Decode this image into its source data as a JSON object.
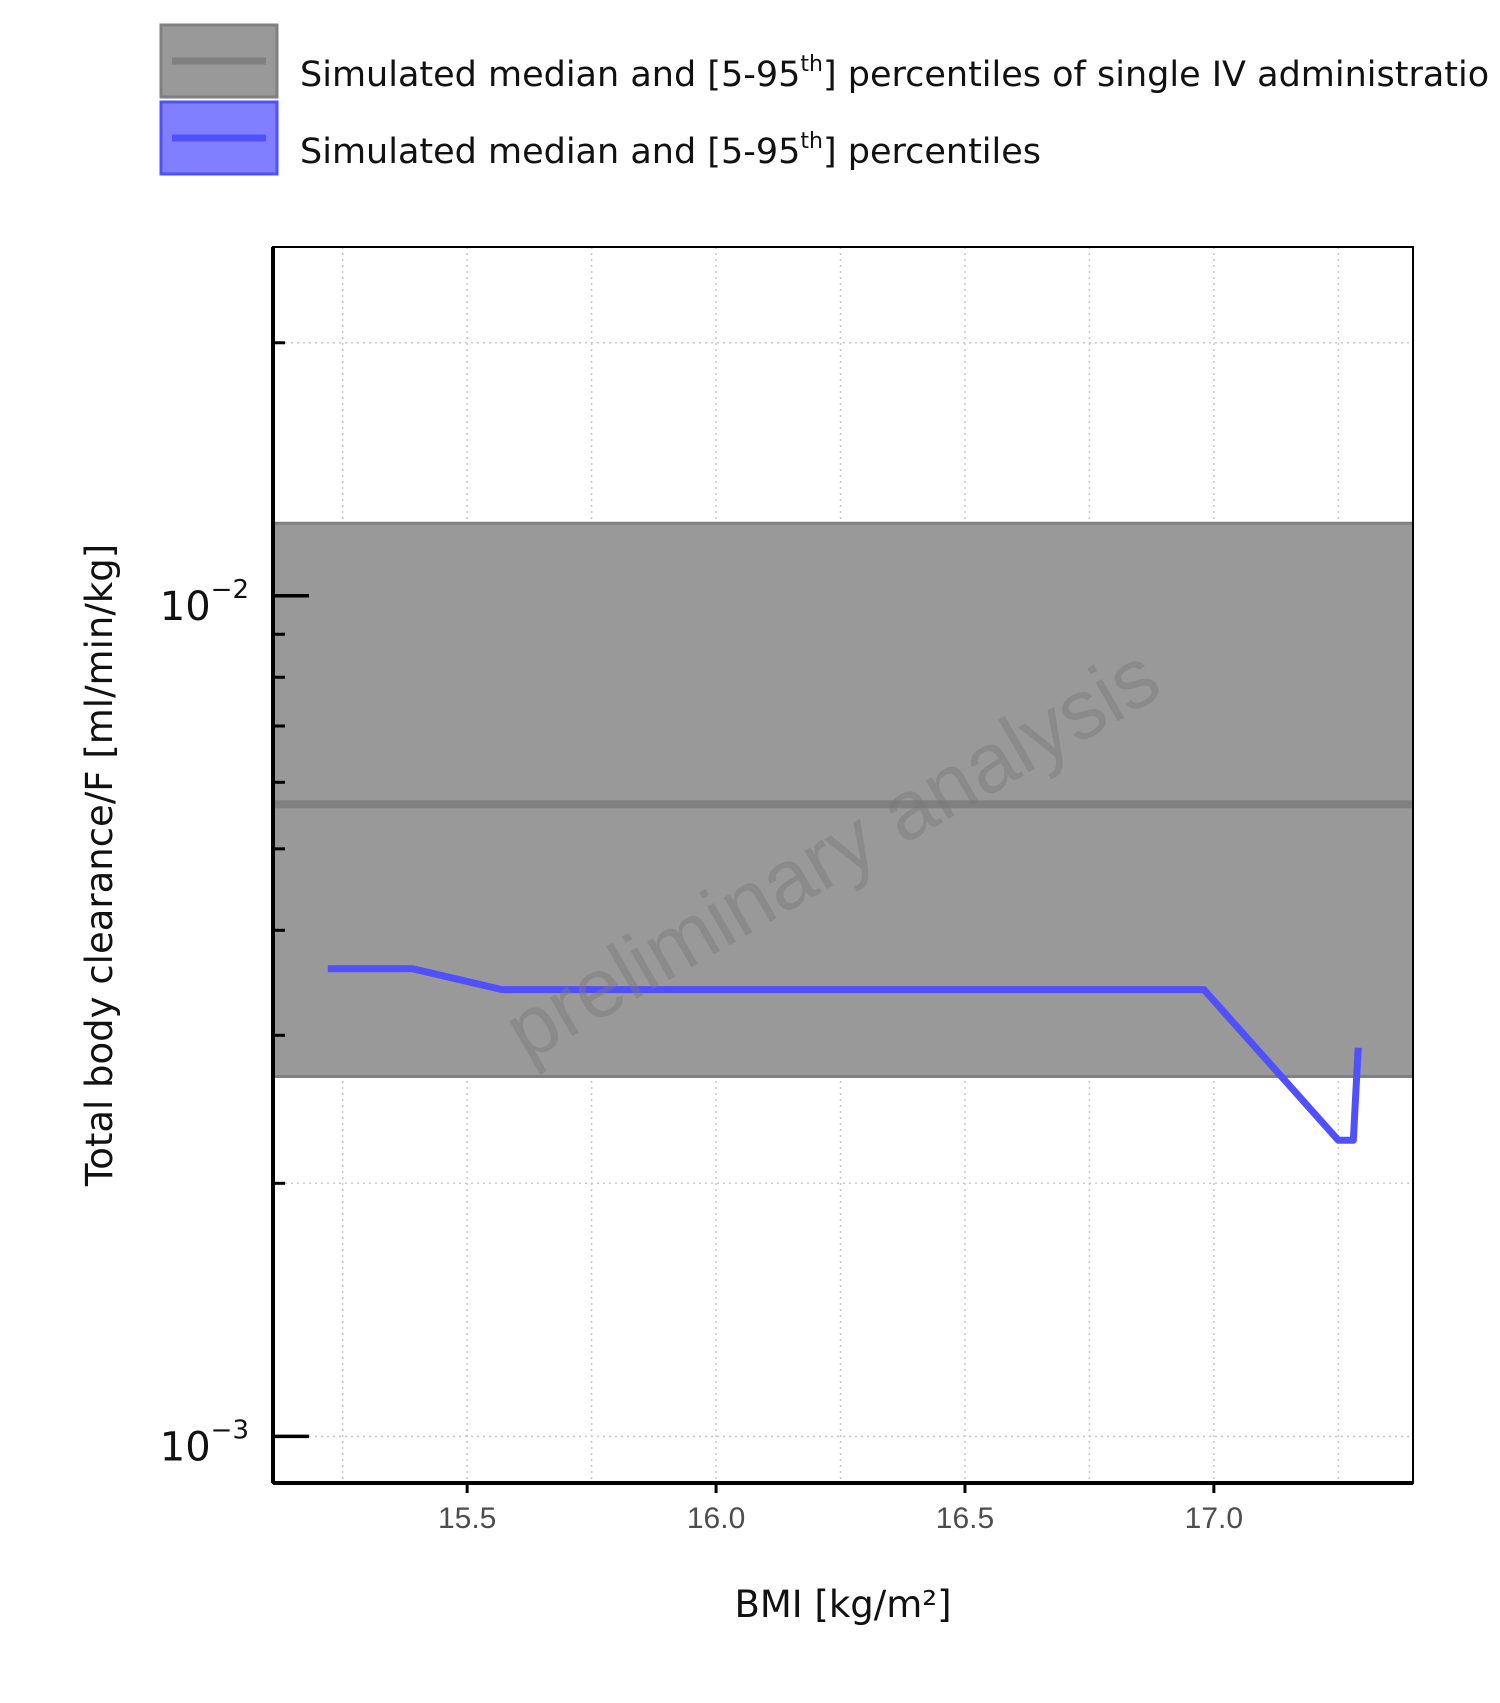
{
  "chart_data": {
    "type": "line",
    "xlabel": "BMI [kg/m²]",
    "ylabel": "Total body clearance/F [ml/min/kg]",
    "x_ticks": [
      "15.5",
      "16.0",
      "16.5",
      "17.0"
    ],
    "x_tick_values": [
      15.5,
      16.0,
      16.5,
      17.0
    ],
    "xlim": [
      15.11,
      17.4
    ],
    "y_scale": "log",
    "ylim": [
      0.00088,
      0.026
    ],
    "y_ticks": [
      {
        "base": "10",
        "exp": "−2",
        "value": 0.01
      },
      {
        "base": "10",
        "exp": "−3",
        "value": 0.001
      }
    ],
    "y_minor_ticks": [
      0.002,
      0.003,
      0.004,
      0.005,
      0.006,
      0.007,
      0.008,
      0.009,
      0.02
    ],
    "grid": true,
    "legend_position": "top",
    "legend": [
      {
        "text": "Simulated median and [5-95",
        "sup": "th",
        "text_after": "] percentiles of single IV administratio",
        "fill_color": "#999999",
        "line_color": "#808080"
      },
      {
        "text": "Simulated median and [5-95",
        "sup": "th",
        "text_after": "] percentiles",
        "fill_color": "#7f7fff",
        "line_color": "#5050ff"
      }
    ],
    "band": {
      "lower": 0.00268,
      "upper": 0.0122,
      "median": 0.00565,
      "color": "#999999",
      "line_color": "#808080"
    },
    "series": [
      {
        "x": [
          15.22,
          15.39,
          15.57,
          16.98,
          17.25,
          17.28,
          17.29
        ],
        "y": [
          0.0036,
          0.0036,
          0.0034,
          0.0034,
          0.00225,
          0.00225,
          0.0029
        ],
        "color": "#5050ff"
      }
    ],
    "watermark": "preliminary analysis"
  }
}
